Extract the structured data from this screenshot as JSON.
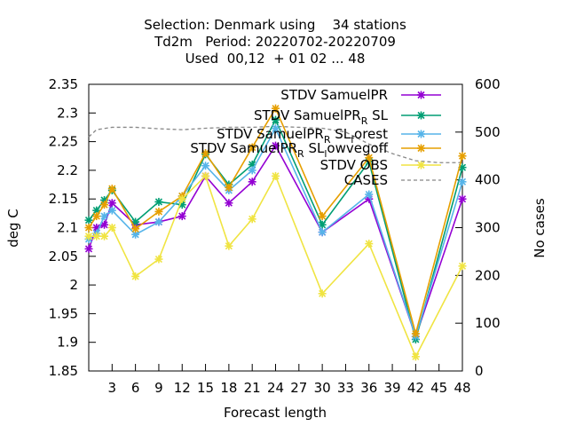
{
  "chart_data": {
    "type": "line",
    "title_lines": [
      "Selection: Denmark using    34 stations",
      "Td2m   Period: 20220702-20220709",
      "Used  00,12  + 01 02 ... 48"
    ],
    "xlabel": "Forecast length",
    "ylabel": "deg C",
    "y2label": "No cases",
    "xlim": [
      0,
      48
    ],
    "ylim": [
      1.85,
      2.35
    ],
    "y2lim": [
      0,
      600
    ],
    "xticks": [
      3,
      6,
      9,
      12,
      15,
      18,
      21,
      24,
      27,
      30,
      33,
      36,
      39,
      42,
      45,
      48
    ],
    "yticks": [
      1.85,
      1.9,
      1.95,
      2,
      2.05,
      2.1,
      2.15,
      2.2,
      2.25,
      2.3,
      2.35
    ],
    "ytick_labels": [
      "1.85",
      "1.9",
      "1.95",
      "2",
      "2.05",
      "2.1",
      "2.15",
      "2.2",
      "2.25",
      "2.3",
      "2.35"
    ],
    "y2ticks": [
      0,
      100,
      200,
      300,
      400,
      500,
      600
    ],
    "x": [
      0,
      1,
      2,
      3,
      6,
      9,
      12,
      15,
      18,
      21,
      24,
      30,
      36,
      42,
      48
    ],
    "series": [
      {
        "name": "STDV SamuelPR",
        "legend_main": "STDV SamuelPR",
        "color": "#9400d3",
        "values": [
          2.063,
          2.1,
          2.105,
          2.143,
          2.105,
          2.11,
          2.12,
          2.19,
          2.143,
          2.18,
          2.243,
          2.092,
          2.15,
          1.91,
          2.15
        ]
      },
      {
        "name": "STDV SamuelPR_R SL",
        "legend_main": "STDV SamuelPR",
        "legend_sub": "R",
        "legend_tail": " SL",
        "color": "#009e73",
        "values": [
          2.113,
          2.13,
          2.148,
          2.165,
          2.11,
          2.145,
          2.14,
          2.228,
          2.175,
          2.21,
          2.288,
          2.105,
          2.215,
          1.905,
          2.205
        ]
      },
      {
        "name": "STDV SamuelPR_R SL_forest",
        "legend_main": "STDV SamuelPR",
        "legend_sub": "R",
        "legend_tail": " SL",
        "legend_sub2": "f",
        "legend_tail2": "orest",
        "color": "#56b4e9",
        "values": [
          2.08,
          2.09,
          2.12,
          2.13,
          2.088,
          2.11,
          2.155,
          2.208,
          2.165,
          2.2,
          2.273,
          2.092,
          2.158,
          1.91,
          2.18
        ]
      },
      {
        "name": "STDV SamuelPR_R SL_lowvegoff",
        "legend_main": "STDV SamuelPR",
        "legend_sub": "R",
        "legend_tail": " SL",
        "legend_sub2": "l",
        "legend_tail2": "owvegoff",
        "color": "#e69f00",
        "values": [
          2.1,
          2.12,
          2.14,
          2.168,
          2.098,
          2.128,
          2.155,
          2.23,
          2.17,
          2.24,
          2.308,
          2.12,
          2.222,
          1.915,
          2.225
        ]
      },
      {
        "name": "STDV OBS",
        "legend_main": "STDV OBS",
        "color": "#f0e442",
        "values": [
          2.085,
          2.085,
          2.085,
          2.1,
          2.015,
          2.045,
          2.15,
          2.19,
          2.068,
          2.115,
          2.19,
          1.985,
          2.072,
          1.875,
          2.033
        ]
      }
    ],
    "cases": {
      "name": "CASES",
      "legend_main": "CASES",
      "color": "#888888",
      "x": [
        0,
        1,
        3,
        6,
        9,
        12,
        15,
        18,
        21,
        24,
        27,
        30,
        33,
        36,
        39,
        42,
        45,
        48
      ],
      "values": [
        490,
        505,
        510,
        510,
        507,
        505,
        508,
        510,
        510,
        512,
        510,
        508,
        500,
        475,
        455,
        440,
        436,
        436
      ]
    },
    "legend_position": "top-right",
    "grid": false
  }
}
